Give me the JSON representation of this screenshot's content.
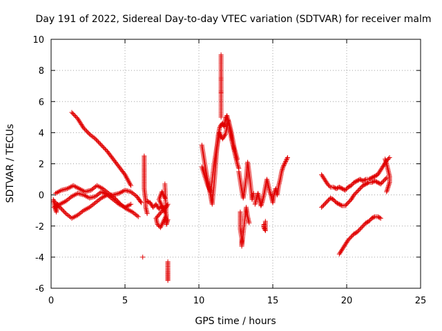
{
  "chart_data": {
    "type": "scatter",
    "title": "Day 191 of 2022, Sidereal Day-to-day VTEC variation (SDTVAR) for receiver malm",
    "xlabel": "GPS time / hours",
    "ylabel": "SDTVAR / TECUs",
    "xlim": [
      0,
      25
    ],
    "ylim": [
      -6,
      10
    ],
    "xticks": [
      0,
      5,
      10,
      15,
      20,
      25
    ],
    "yticks": [
      -6,
      -4,
      -2,
      0,
      2,
      4,
      6,
      8,
      10
    ],
    "grid": true,
    "marker": "+",
    "color": "#e00000",
    "series": [
      {
        "name": "receiver malm",
        "segments": [
          {
            "x": [
              1.4,
              1.8,
              2.2,
              2.6,
              3.0,
              3.4,
              3.8,
              4.2,
              4.6,
              5.0,
              5.4
            ],
            "y": [
              5.3,
              4.9,
              4.3,
              3.9,
              3.6,
              3.2,
              2.8,
              2.3,
              1.8,
              1.3,
              0.6
            ]
          },
          {
            "x": [
              0.2,
              0.6,
              1.0,
              1.4,
              1.8,
              2.2,
              2.6,
              3.0,
              3.4,
              3.8,
              4.2,
              4.6,
              5.0,
              5.4,
              5.8,
              6.1
            ],
            "y": [
              -0.4,
              -0.8,
              -1.2,
              -1.5,
              -1.3,
              -1.0,
              -0.8,
              -0.5,
              -0.2,
              0.0,
              0.0,
              0.1,
              0.3,
              0.2,
              -0.1,
              -0.5
            ]
          },
          {
            "x": [
              0.3,
              0.7,
              1.1,
              1.5,
              1.9,
              2.3,
              2.7,
              3.1,
              3.5,
              3.9,
              4.3,
              4.7,
              5.1,
              5.5,
              5.9
            ],
            "y": [
              0.1,
              0.3,
              0.4,
              0.6,
              0.4,
              0.2,
              0.3,
              0.6,
              0.4,
              0.1,
              -0.2,
              -0.6,
              -0.9,
              -1.1,
              -1.4
            ]
          },
          {
            "x": [
              0.2,
              0.6,
              1.0,
              1.4,
              1.8,
              2.2,
              2.6,
              3.0,
              3.4,
              3.8,
              4.2,
              4.6,
              5.0,
              5.4
            ],
            "y": [
              -0.8,
              -0.6,
              -0.4,
              -0.1,
              0.1,
              0.0,
              -0.2,
              -0.1,
              0.2,
              0.0,
              -0.3,
              -0.6,
              -0.8,
              -0.6
            ]
          },
          {
            "x": [
              0.15,
              0.25,
              0.35,
              0.45
            ],
            "y": [
              -0.3,
              -0.8,
              -1.1,
              -0.6
            ]
          },
          {
            "x": [
              6.3,
              6.3,
              6.3,
              6.3,
              6.3,
              6.3,
              6.35,
              6.4,
              6.4,
              6.5
            ],
            "y": [
              2.5,
              2.0,
              1.6,
              1.2,
              0.8,
              0.4,
              0.0,
              -0.4,
              -0.8,
              -1.2
            ]
          },
          {
            "x": [
              6.5,
              6.7,
              6.9,
              7.1,
              7.3,
              7.5,
              7.7,
              7.9,
              7.1,
              7.2,
              7.4,
              7.6,
              7.8,
              7.3,
              7.5,
              7.7
            ],
            "y": [
              -0.4,
              -0.5,
              -0.8,
              -0.6,
              -0.9,
              -0.7,
              -1.0,
              -0.6,
              -1.5,
              -1.9,
              -2.1,
              -1.7,
              -1.3,
              -0.3,
              0.2,
              -0.2
            ]
          },
          {
            "x": [
              7.7,
              7.8,
              7.8,
              7.9
            ],
            "y": [
              0.7,
              -1.5,
              -1.9,
              -1.6
            ]
          },
          {
            "x": [
              7.9,
              7.9,
              7.9,
              7.9,
              7.9,
              7.9
            ],
            "y": [
              -4.3,
              -4.6,
              -4.9,
              -5.1,
              -5.3,
              -5.5
            ]
          },
          {
            "x": [
              6.2
            ],
            "y": [
              -4.0
            ]
          },
          {
            "x": [
              10.2,
              10.3,
              10.4,
              10.5,
              10.6,
              10.7,
              10.8,
              10.9,
              11.0,
              11.1,
              11.2,
              11.3,
              11.4,
              11.5,
              11.6,
              11.7,
              11.8,
              11.9,
              12.0,
              12.1,
              12.2,
              12.3,
              12.4,
              12.5,
              12.6,
              12.7
            ],
            "y": [
              3.2,
              2.6,
              2.0,
              1.4,
              0.9,
              0.4,
              -0.1,
              -0.6,
              0.4,
              1.5,
              2.8,
              3.8,
              4.3,
              4.5,
              4.6,
              4.4,
              4.9,
              5.1,
              4.7,
              4.2,
              3.6,
              3.2,
              2.8,
              2.4,
              2.0,
              1.7
            ]
          },
          {
            "x": [
              10.2,
              10.4,
              10.6,
              10.8,
              11.0,
              11.2,
              11.4,
              11.6,
              11.8,
              12.0,
              12.2,
              12.4,
              12.6
            ],
            "y": [
              1.8,
              1.2,
              0.6,
              0.2,
              1.8,
              3.0,
              4.0,
              3.6,
              3.9,
              4.8,
              4.0,
              3.0,
              2.3
            ]
          },
          {
            "x": [
              11.5,
              11.5,
              11.5,
              11.5,
              11.5,
              11.5,
              11.5
            ],
            "y": [
              9.0,
              8.4,
              7.6,
              7.3,
              6.7,
              6.5,
              5.0
            ]
          },
          {
            "x": [
              12.7,
              12.8,
              12.9,
              13.0,
              13.1,
              13.2,
              13.3,
              13.4,
              13.5,
              13.6,
              13.7
            ],
            "y": [
              1.5,
              0.9,
              0.3,
              -0.2,
              0.4,
              1.1,
              2.1,
              1.4,
              0.6,
              -0.3,
              0.1
            ]
          },
          {
            "x": [
              12.8,
              12.8,
              12.8,
              12.9,
              12.9,
              13.2,
              13.3,
              13.4
            ],
            "y": [
              -1.1,
              -1.6,
              -2.2,
              -2.8,
              -3.3,
              -0.8,
              -1.4,
              -1.8
            ]
          },
          {
            "x": [
              13.8,
              13.9,
              14.0,
              14.1,
              14.2,
              14.3,
              14.4,
              14.5,
              14.6,
              14.7,
              14.8,
              14.9,
              15.0,
              15.1,
              15.2,
              15.3,
              15.4,
              15.5,
              15.6,
              15.7,
              15.8,
              15.9,
              16.0
            ],
            "y": [
              -0.6,
              -0.2,
              0.1,
              -0.3,
              -0.7,
              -0.4,
              0.0,
              0.5,
              1.0,
              0.6,
              0.2,
              -0.1,
              -0.5,
              0.1,
              0.4,
              0.0,
              0.6,
              1.0,
              1.5,
              1.8,
              2.0,
              2.2,
              2.4
            ]
          },
          {
            "x": [
              14.4,
              14.4,
              14.5,
              14.5
            ],
            "y": [
              -1.9,
              -2.1,
              -2.3,
              -1.7
            ]
          },
          {
            "x": [
              18.3,
              18.5,
              18.7,
              18.9,
              19.1,
              19.3,
              19.5,
              19.7,
              19.9,
              20.1,
              20.3,
              20.5,
              20.7,
              20.9,
              21.1,
              21.3,
              21.5,
              21.7,
              21.9,
              22.1,
              22.3,
              22.5,
              22.7,
              22.9
            ],
            "y": [
              1.3,
              1.0,
              0.7,
              0.5,
              0.5,
              0.4,
              0.5,
              0.4,
              0.3,
              0.5,
              0.6,
              0.8,
              0.9,
              1.0,
              0.9,
              1.0,
              1.0,
              1.1,
              1.2,
              1.3,
              1.6,
              1.9,
              2.2,
              2.4
            ]
          },
          {
            "x": [
              18.3,
              18.5,
              18.7,
              18.9,
              19.1,
              19.3,
              19.5,
              19.7,
              19.9,
              20.1,
              20.3,
              20.5,
              20.7,
              20.9,
              21.1,
              21.3,
              21.5,
              21.7,
              21.9,
              22.1,
              22.3,
              22.5,
              22.7
            ],
            "y": [
              -0.8,
              -0.6,
              -0.4,
              -0.2,
              -0.3,
              -0.5,
              -0.6,
              -0.7,
              -0.7,
              -0.5,
              -0.3,
              0.0,
              0.2,
              0.4,
              0.6,
              0.7,
              0.8,
              0.8,
              0.9,
              0.8,
              0.7,
              0.9,
              1.1
            ]
          },
          {
            "x": [
              19.5,
              19.7,
              19.9,
              20.1,
              20.3,
              20.5,
              20.7,
              20.9,
              21.1,
              21.3,
              21.5,
              21.7,
              21.9,
              22.1,
              22.3
            ],
            "y": [
              -3.8,
              -3.5,
              -3.2,
              -2.9,
              -2.7,
              -2.5,
              -2.4,
              -2.2,
              -2.0,
              -1.8,
              -1.7,
              -1.5,
              -1.4,
              -1.4,
              -1.5
            ]
          },
          {
            "x": [
              22.6,
              22.7,
              22.8,
              22.9,
              22.9,
              22.8,
              22.7
            ],
            "y": [
              2.3,
              2.0,
              1.6,
              1.2,
              0.8,
              0.5,
              0.2
            ]
          }
        ]
      }
    ]
  }
}
